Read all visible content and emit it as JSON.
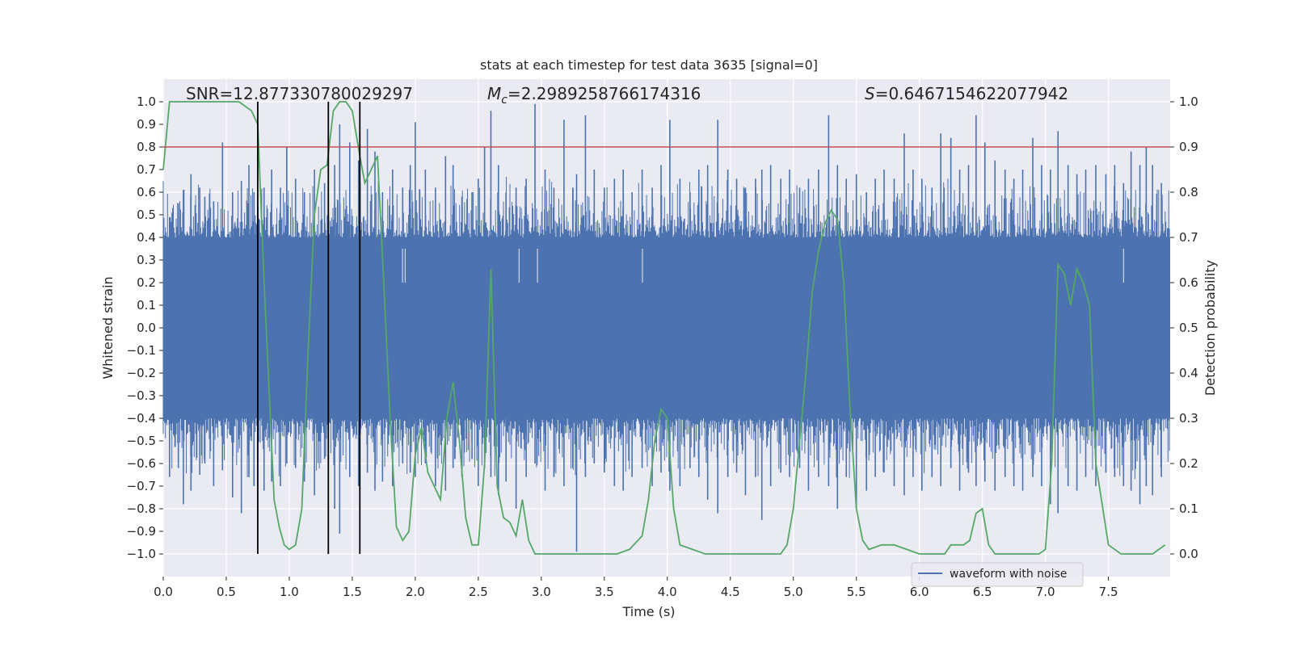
{
  "chart_data": {
    "type": "line",
    "title": "stats at each timestep for test data 3635 [signal=0]",
    "xlabel": "Time (s)",
    "ylabel": "Whitened strain",
    "y2label": "Detection probability",
    "xlim": [
      0.0,
      7.99
    ],
    "ylim": [
      -1.1,
      1.1
    ],
    "y2lim": [
      -0.05,
      1.05
    ],
    "xticks": [
      0.0,
      0.5,
      1.0,
      1.5,
      2.0,
      2.5,
      3.0,
      3.5,
      4.0,
      4.5,
      5.0,
      5.5,
      6.0,
      6.5,
      7.0,
      7.5
    ],
    "yticks": [
      -1.0,
      -0.9,
      -0.8,
      -0.7,
      -0.6,
      -0.5,
      -0.4,
      -0.3,
      -0.2,
      -0.1,
      0.0,
      0.1,
      0.2,
      0.3,
      0.4,
      0.5,
      0.6,
      0.7,
      0.8,
      0.9,
      1.0
    ],
    "y2ticks": [
      0.0,
      0.1,
      0.2,
      0.3,
      0.4,
      0.5,
      0.6,
      0.7,
      0.8,
      0.9,
      1.0
    ],
    "grid": true,
    "legend": {
      "placement": "lower-right",
      "entries": [
        "waveform with noise"
      ]
    },
    "annotations": {
      "snr": "SNR=12.877330780029297",
      "mc_symbol": "M",
      "mc_subscript": "c",
      "mc_value": "=2.2989258766174316",
      "s_symbol": "S",
      "s_value": "=0.6467154622077942"
    },
    "threshold": {
      "axis": "y2",
      "value": 0.9,
      "color": "#c44e52"
    },
    "vlines": [
      0.75,
      1.31,
      1.56
    ],
    "noise_band": {
      "low": -0.4,
      "high": 0.4,
      "color": "#4c72b0",
      "peak_max": 1.0,
      "peak_min": -1.0
    },
    "series": [
      {
        "name": "waveform with noise",
        "axis": "y",
        "color": "#4c72b0",
        "spikes": [
          [
            0.05,
            0.49,
            -0.66
          ],
          [
            0.12,
            0.55,
            -0.62
          ],
          [
            0.16,
            0.61,
            -0.78
          ],
          [
            0.22,
            0.68,
            -0.72
          ],
          [
            0.29,
            0.62,
            -0.65
          ],
          [
            0.33,
            0.58,
            -0.6
          ],
          [
            0.4,
            0.56,
            -0.7
          ],
          [
            0.47,
            0.82,
            -0.63
          ],
          [
            0.55,
            0.6,
            -0.75
          ],
          [
            0.62,
            0.65,
            -0.82
          ],
          [
            0.68,
            0.72,
            -0.66
          ],
          [
            0.72,
            0.6,
            -0.7
          ],
          [
            0.8,
            0.62,
            -0.72
          ],
          [
            0.86,
            0.7,
            -0.68
          ],
          [
            0.93,
            0.62,
            -0.7
          ],
          [
            0.98,
            0.8,
            -0.6
          ],
          [
            1.05,
            0.66,
            -0.62
          ],
          [
            1.12,
            0.6,
            -0.68
          ],
          [
            1.2,
            0.7,
            -0.74
          ],
          [
            1.28,
            0.64,
            -0.58
          ],
          [
            1.36,
            0.72,
            -0.8
          ],
          [
            1.4,
            0.9,
            -0.91
          ],
          [
            1.48,
            0.82,
            -0.66
          ],
          [
            1.55,
            0.74,
            -0.7
          ],
          [
            1.62,
            0.88,
            -0.64
          ],
          [
            1.68,
            0.78,
            -0.72
          ],
          [
            1.74,
            0.6,
            -0.68
          ],
          [
            1.82,
            0.7,
            -0.7
          ],
          [
            1.9,
            0.62,
            -0.6
          ],
          [
            1.96,
            0.72,
            -0.64
          ],
          [
            2.0,
            0.91,
            -0.66
          ],
          [
            2.08,
            0.7,
            -0.6
          ],
          [
            2.16,
            0.62,
            -0.7
          ],
          [
            2.24,
            0.76,
            -0.72
          ],
          [
            2.3,
            0.72,
            -0.62
          ],
          [
            2.37,
            0.58,
            -0.66
          ],
          [
            2.45,
            0.6,
            -0.58
          ],
          [
            2.5,
            0.66,
            -0.7
          ],
          [
            2.55,
            0.8,
            -0.62
          ],
          [
            2.6,
            0.96,
            -0.66
          ],
          [
            2.66,
            0.72,
            -0.74
          ],
          [
            2.72,
            0.6,
            -0.68
          ],
          [
            2.8,
            0.62,
            -0.8
          ],
          [
            2.88,
            0.66,
            -0.66
          ],
          [
            2.95,
            0.99,
            -0.6
          ],
          [
            3.03,
            0.7,
            -0.72
          ],
          [
            3.1,
            0.62,
            -0.66
          ],
          [
            3.18,
            0.92,
            -0.7
          ],
          [
            3.25,
            0.62,
            -0.62
          ],
          [
            3.28,
            0.68,
            -0.99
          ],
          [
            3.35,
            0.94,
            -0.66
          ],
          [
            3.42,
            0.7,
            -0.6
          ],
          [
            3.5,
            0.62,
            -0.64
          ],
          [
            3.58,
            0.66,
            -0.7
          ],
          [
            3.65,
            0.7,
            -0.72
          ],
          [
            3.72,
            0.6,
            -0.66
          ],
          [
            3.8,
            0.7,
            -0.62
          ],
          [
            3.88,
            0.62,
            -0.7
          ],
          [
            3.95,
            0.72,
            -0.64
          ],
          [
            4.02,
            0.92,
            -0.72
          ],
          [
            4.1,
            0.66,
            -0.7
          ],
          [
            4.18,
            0.6,
            -0.62
          ],
          [
            4.25,
            0.7,
            -0.66
          ],
          [
            4.32,
            0.72,
            -0.76
          ],
          [
            4.4,
            0.92,
            -0.82
          ],
          [
            4.48,
            0.7,
            -0.66
          ],
          [
            4.55,
            0.66,
            -0.64
          ],
          [
            4.62,
            0.62,
            -0.74
          ],
          [
            4.7,
            0.66,
            -0.66
          ],
          [
            4.75,
            0.7,
            -0.85
          ],
          [
            4.82,
            0.72,
            -0.7
          ],
          [
            4.9,
            0.66,
            -0.64
          ],
          [
            4.97,
            0.7,
            -0.66
          ],
          [
            5.05,
            0.62,
            -0.62
          ],
          [
            5.12,
            0.66,
            -0.72
          ],
          [
            5.2,
            0.7,
            -0.66
          ],
          [
            5.28,
            0.94,
            -0.7
          ],
          [
            5.35,
            0.72,
            -0.8
          ],
          [
            5.42,
            0.66,
            -0.66
          ],
          [
            5.5,
            0.68,
            -0.8
          ],
          [
            5.58,
            0.6,
            -0.72
          ],
          [
            5.65,
            0.66,
            -0.66
          ],
          [
            5.72,
            0.7,
            -0.64
          ],
          [
            5.8,
            0.66,
            -0.7
          ],
          [
            5.88,
            0.86,
            -0.74
          ],
          [
            5.95,
            0.7,
            -0.66
          ],
          [
            6.02,
            0.66,
            -0.72
          ],
          [
            6.1,
            0.62,
            -0.66
          ],
          [
            6.17,
            0.86,
            -0.7
          ],
          [
            6.25,
            0.84,
            -0.62
          ],
          [
            6.32,
            0.7,
            -0.72
          ],
          [
            6.39,
            0.72,
            -0.64
          ],
          [
            6.45,
            0.94,
            -0.7
          ],
          [
            6.52,
            0.82,
            -0.68
          ],
          [
            6.6,
            0.74,
            -0.72
          ],
          [
            6.68,
            0.7,
            -0.66
          ],
          [
            6.75,
            0.66,
            -0.7
          ],
          [
            6.82,
            0.7,
            -0.72
          ],
          [
            6.9,
            0.84,
            -0.66
          ],
          [
            6.97,
            0.72,
            -0.7
          ],
          [
            7.04,
            0.7,
            -0.78
          ],
          [
            7.1,
            0.87,
            -0.82
          ],
          [
            7.18,
            0.72,
            -0.7
          ],
          [
            7.25,
            0.68,
            -0.72
          ],
          [
            7.32,
            0.7,
            -0.66
          ],
          [
            7.4,
            0.72,
            -0.7
          ],
          [
            7.48,
            0.68,
            -0.64
          ],
          [
            7.55,
            0.72,
            -0.66
          ],
          [
            7.62,
            0.64,
            -0.7
          ],
          [
            7.68,
            0.78,
            -0.72
          ],
          [
            7.75,
            0.72,
            -0.78
          ],
          [
            7.8,
            0.8,
            -0.7
          ],
          [
            7.85,
            0.72,
            -0.74
          ],
          [
            7.92,
            0.64,
            -0.66
          ]
        ]
      },
      {
        "name": "",
        "axis": "y2",
        "color": "#55a868",
        "x": [
          0.0,
          0.05,
          0.1,
          0.2,
          0.3,
          0.4,
          0.5,
          0.6,
          0.7,
          0.75,
          0.8,
          0.85,
          0.88,
          0.92,
          0.96,
          1.0,
          1.05,
          1.1,
          1.15,
          1.2,
          1.25,
          1.3,
          1.35,
          1.4,
          1.45,
          1.5,
          1.56,
          1.6,
          1.65,
          1.7,
          1.75,
          1.8,
          1.85,
          1.9,
          1.95,
          2.0,
          2.05,
          2.1,
          2.15,
          2.2,
          2.25,
          2.3,
          2.35,
          2.4,
          2.45,
          2.5,
          2.55,
          2.6,
          2.65,
          2.7,
          2.75,
          2.8,
          2.85,
          2.9,
          2.95,
          3.0,
          3.2,
          3.4,
          3.6,
          3.7,
          3.8,
          3.85,
          3.9,
          3.95,
          4.0,
          4.05,
          4.1,
          4.2,
          4.3,
          4.5,
          4.7,
          4.9,
          4.95,
          5.0,
          5.05,
          5.1,
          5.15,
          5.2,
          5.25,
          5.3,
          5.35,
          5.4,
          5.45,
          5.5,
          5.55,
          5.6,
          5.7,
          5.8,
          5.9,
          6.0,
          6.1,
          6.2,
          6.25,
          6.3,
          6.35,
          6.4,
          6.45,
          6.5,
          6.55,
          6.6,
          6.7,
          6.8,
          6.9,
          6.95,
          7.0,
          7.05,
          7.1,
          7.15,
          7.2,
          7.25,
          7.3,
          7.35,
          7.4,
          7.5,
          7.6,
          7.7,
          7.8,
          7.85,
          7.9,
          7.95
        ],
        "values": [
          0.85,
          1.0,
          1.0,
          1.0,
          1.0,
          1.0,
          1.0,
          1.0,
          0.98,
          0.95,
          0.6,
          0.3,
          0.12,
          0.06,
          0.02,
          0.01,
          0.02,
          0.1,
          0.45,
          0.75,
          0.85,
          0.86,
          0.98,
          1.0,
          1.0,
          0.98,
          0.88,
          0.82,
          0.85,
          0.88,
          0.6,
          0.3,
          0.06,
          0.03,
          0.05,
          0.22,
          0.28,
          0.18,
          0.15,
          0.12,
          0.3,
          0.38,
          0.25,
          0.08,
          0.02,
          0.02,
          0.2,
          0.63,
          0.15,
          0.08,
          0.07,
          0.04,
          0.12,
          0.03,
          0.0,
          0.0,
          0.0,
          0.0,
          0.0,
          0.01,
          0.04,
          0.12,
          0.25,
          0.32,
          0.3,
          0.1,
          0.02,
          0.01,
          0.0,
          0.0,
          0.0,
          0.0,
          0.02,
          0.1,
          0.25,
          0.4,
          0.58,
          0.67,
          0.73,
          0.76,
          0.74,
          0.6,
          0.32,
          0.1,
          0.03,
          0.01,
          0.02,
          0.02,
          0.01,
          0.0,
          0.0,
          0.0,
          0.02,
          0.02,
          0.02,
          0.03,
          0.09,
          0.1,
          0.02,
          0.0,
          0.0,
          0.0,
          0.0,
          0.0,
          0.01,
          0.2,
          0.64,
          0.62,
          0.55,
          0.63,
          0.6,
          0.55,
          0.2,
          0.02,
          0.0,
          0.0,
          0.0,
          0.0,
          0.01,
          0.02
        ]
      }
    ]
  }
}
